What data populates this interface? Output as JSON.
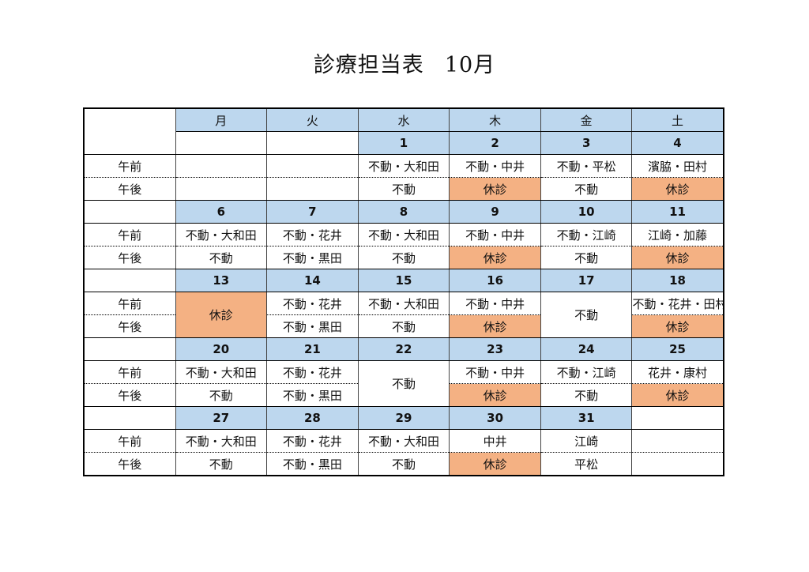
{
  "title": {
    "main": "診療担当表",
    "month": "10月"
  },
  "weekdays": [
    "月",
    "火",
    "水",
    "木",
    "金",
    "土"
  ],
  "row_labels": {
    "am": "午前",
    "pm": "午後"
  },
  "weeks": [
    {
      "dates": [
        "",
        "",
        "1",
        "2",
        "3",
        "4"
      ],
      "am": [
        "",
        "",
        "不動・大和田",
        "不動・中井",
        "不動・平松",
        "濱脇・田村"
      ],
      "pm": [
        "",
        "",
        "不動",
        "休診",
        "不動",
        "休診"
      ]
    },
    {
      "dates": [
        "6",
        "7",
        "8",
        "9",
        "10",
        "11"
      ],
      "am": [
        "不動・大和田",
        "不動・花井",
        "不動・大和田",
        "不動・中井",
        "不動・江崎",
        "江崎・加藤"
      ],
      "pm": [
        "不動",
        "不動・黒田",
        "不動",
        "休診",
        "不動",
        "休診"
      ]
    },
    {
      "dates": [
        "13",
        "14",
        "15",
        "16",
        "17",
        "18"
      ],
      "am": [
        "休診",
        "不動・花井",
        "不動・大和田",
        "不動・中井",
        "不動",
        "不動・花井・田村"
      ],
      "pm": [
        "",
        "不動・黒田",
        "不動",
        "休診",
        "",
        "休診"
      ]
    },
    {
      "dates": [
        "20",
        "21",
        "22",
        "23",
        "24",
        "25"
      ],
      "am": [
        "不動・大和田",
        "不動・花井",
        "不動",
        "不動・中井",
        "不動・江崎",
        "花井・康村"
      ],
      "pm": [
        "不動",
        "不動・黒田",
        "",
        "休診",
        "不動",
        "休診"
      ]
    },
    {
      "dates": [
        "27",
        "28",
        "29",
        "30",
        "31",
        ""
      ],
      "am": [
        "不動・大和田",
        "不動・花井",
        "不動・大和田",
        "中井",
        "江崎",
        ""
      ],
      "pm": [
        "不動",
        "不動・黒田",
        "不動",
        "休診",
        "平松",
        ""
      ]
    }
  ],
  "colors": {
    "header": "#bdd7ee",
    "closed": "#f4b183"
  }
}
